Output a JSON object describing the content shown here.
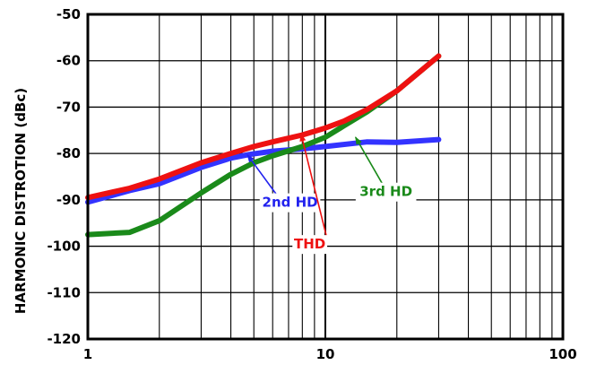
{
  "chart_data": {
    "type": "line",
    "ylabel": "HARMONIC DISTROTION (dBc)",
    "xlabel": "",
    "xscale": "log",
    "xlim": [
      1,
      100
    ],
    "ylim": [
      -120,
      -50
    ],
    "x_ticks": [
      "1",
      "10",
      "100"
    ],
    "y_ticks": [
      "-50",
      "-60",
      "-70",
      "-80",
      "-90",
      "-100",
      "-110",
      "-120"
    ],
    "grid": true,
    "series": [
      {
        "name": "2nd HD",
        "color": "#3333ff",
        "points": [
          [
            1,
            -90.5
          ],
          [
            1.5,
            -88
          ],
          [
            2,
            -86.5
          ],
          [
            3,
            -83
          ],
          [
            4,
            -81
          ],
          [
            4.8,
            -80.2
          ],
          [
            6,
            -79.5
          ],
          [
            8,
            -79
          ],
          [
            10,
            -78.5
          ],
          [
            15,
            -77.5
          ],
          [
            20,
            -77.6
          ],
          [
            30,
            -77
          ]
        ]
      },
      {
        "name": "3rd HD",
        "color": "#1a8a1a",
        "points": [
          [
            1,
            -97.5
          ],
          [
            1.5,
            -97
          ],
          [
            2,
            -94.5
          ],
          [
            3,
            -88.5
          ],
          [
            4,
            -84.5
          ],
          [
            5,
            -82
          ],
          [
            6,
            -80.5
          ],
          [
            8,
            -78.5
          ],
          [
            10,
            -76.5
          ],
          [
            12,
            -74
          ],
          [
            15,
            -71
          ],
          [
            20,
            -66.5
          ],
          [
            30,
            -59
          ]
        ]
      },
      {
        "name": "THD",
        "color": "#ee1111",
        "points": [
          [
            1,
            -89.5
          ],
          [
            1.5,
            -87.5
          ],
          [
            2,
            -85.5
          ],
          [
            3,
            -82
          ],
          [
            4,
            -80
          ],
          [
            5,
            -78.5
          ],
          [
            6,
            -77.5
          ],
          [
            8,
            -76
          ],
          [
            10,
            -74.5
          ],
          [
            12,
            -73
          ],
          [
            15,
            -70.5
          ],
          [
            20,
            -66.5
          ],
          [
            30,
            -59
          ]
        ]
      }
    ],
    "annotations": [
      {
        "text": "2nd HD",
        "color": "#2222ee",
        "label_x": 7.1,
        "label_y": -91.5,
        "arrow_from": [
          6.3,
          -89.2
        ],
        "arrow_to": [
          4.7,
          -80.3
        ]
      },
      {
        "text": "THD",
        "color": "#ee1111",
        "label_x": 8.6,
        "label_y": -100.5,
        "arrow_from": [
          10.1,
          -97.8
        ],
        "arrow_to": [
          7.9,
          -75.8
        ]
      },
      {
        "text": "3rd HD",
        "color": "#1a8a1a",
        "label_x": 18.0,
        "label_y": -89.2,
        "arrow_from": [
          17.5,
          -86.8
        ],
        "arrow_to": [
          13.4,
          -76.5
        ]
      }
    ]
  }
}
